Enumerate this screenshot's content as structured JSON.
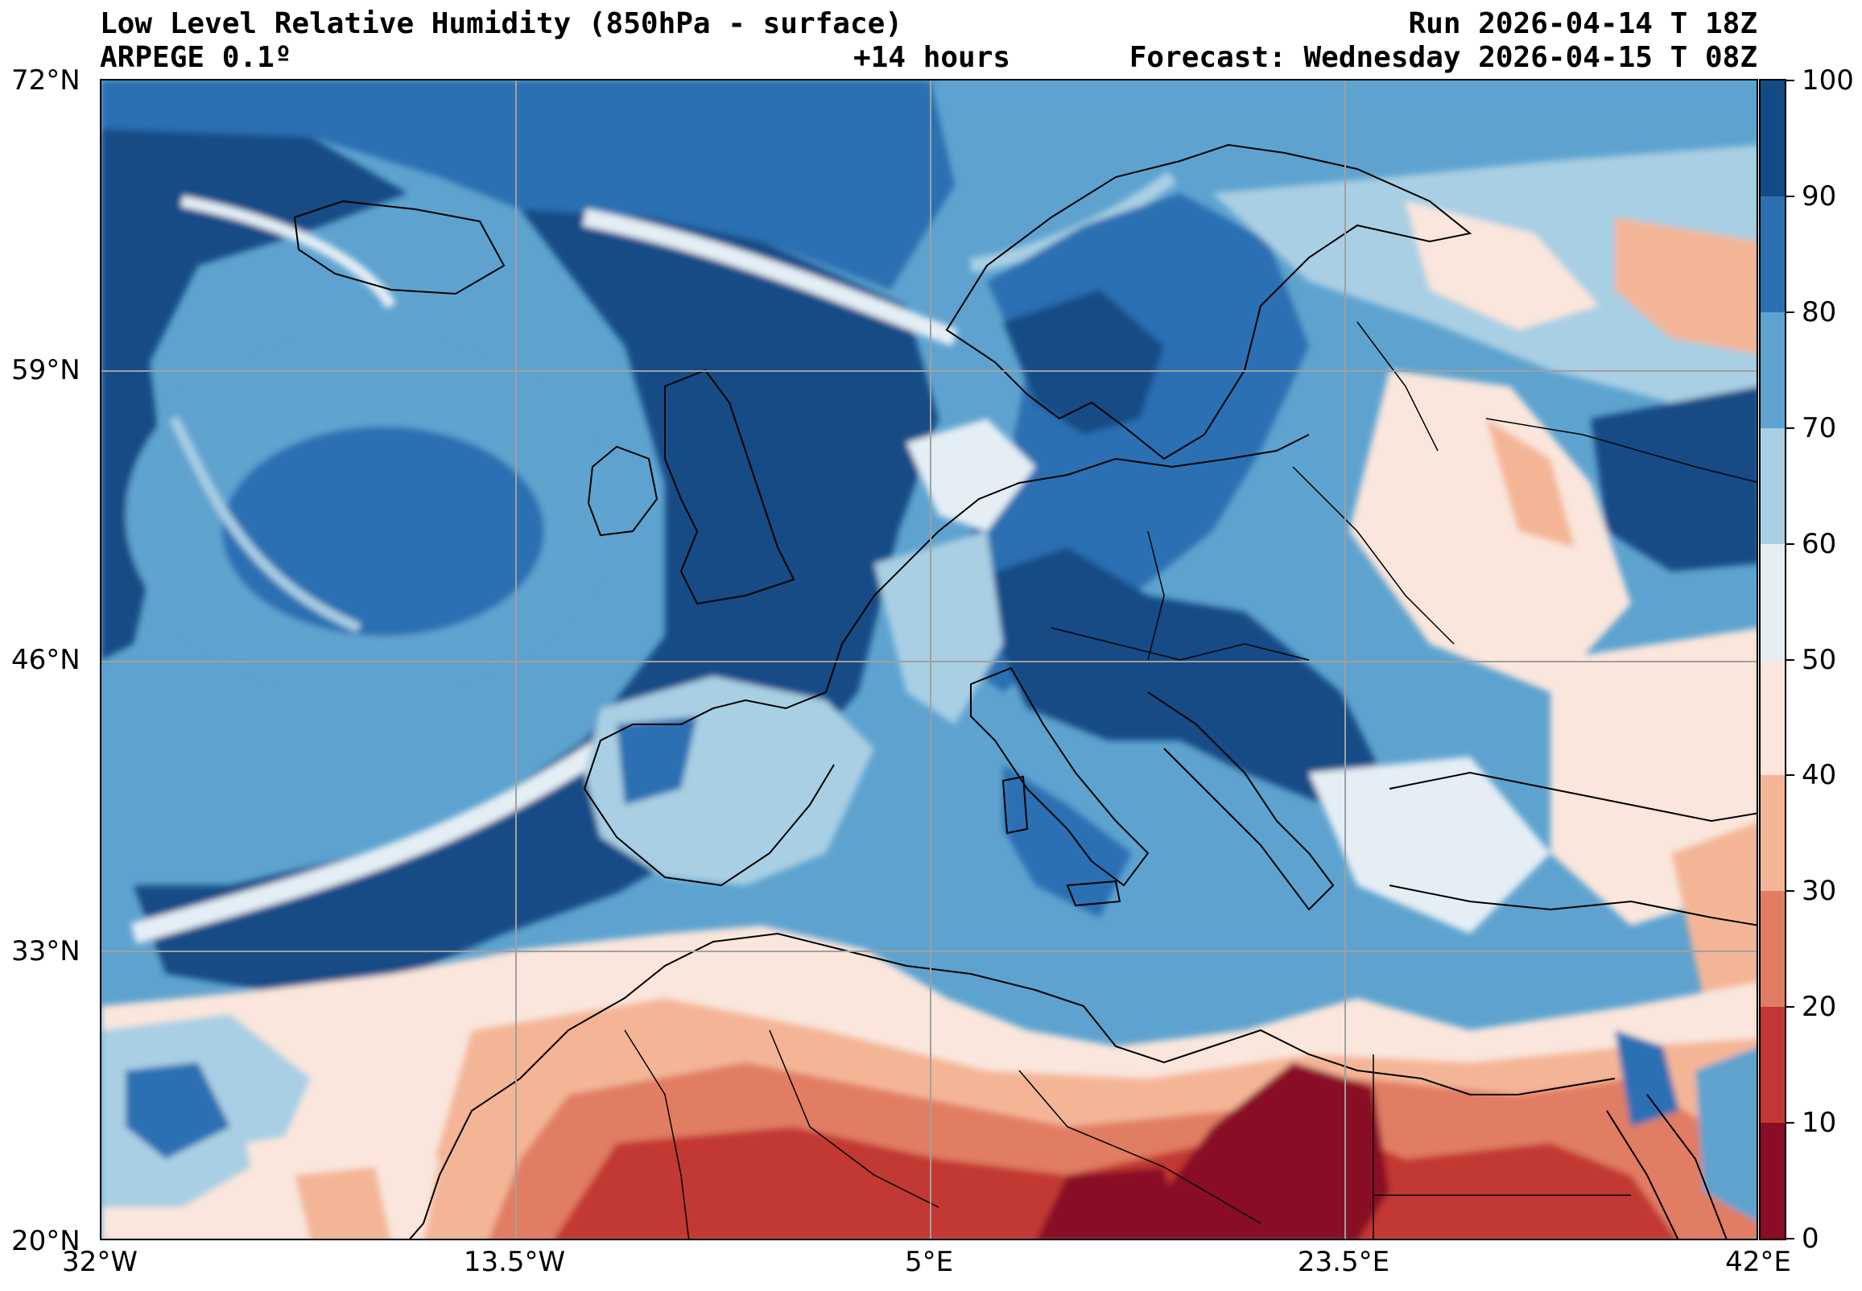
{
  "header": {
    "title": "Low Level Relative Humidity (850hPa - surface)",
    "model": "ARPEGE 0.1º",
    "lead_time": "+14 hours",
    "run": "Run 2026-04-14 T 18Z",
    "forecast": "Forecast: Wednesday 2026-04-15 T 08Z"
  },
  "map": {
    "lon_labels": [
      "32°W",
      "13.5°W",
      "5°E",
      "23.5°E",
      "42°E"
    ],
    "lat_labels": [
      "72°N",
      "59°N",
      "46°N",
      "33°N",
      "20°N"
    ],
    "gridlines": true
  },
  "colorbar": {
    "labels": [
      "100",
      "90",
      "80",
      "70",
      "60",
      "50",
      "40",
      "30",
      "20",
      "10",
      "0"
    ],
    "colors": [
      "#124b86",
      "#2c70b2",
      "#5ea3cf",
      "#a9cfe4",
      "#e5eef5",
      "#fae6dc",
      "#f4b597",
      "#e17d63",
      "#c23733",
      "#8a0c25"
    ]
  }
}
